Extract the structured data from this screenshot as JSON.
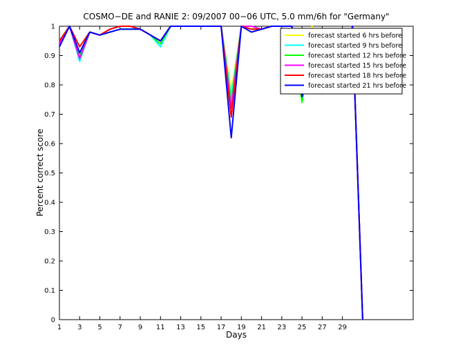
{
  "chart_data": {
    "type": "line",
    "title": "COSMO−DE and RANIE 2: 09/2007 00−06 UTC, 5.0 mm/6h for \"Germany\"",
    "xlabel": "Days",
    "ylabel": "Percent correct score",
    "xlim": [
      1,
      36
    ],
    "ylim": [
      0,
      1
    ],
    "x_ticks": [
      1,
      3,
      5,
      7,
      9,
      11,
      13,
      15,
      17,
      19,
      21,
      23,
      25,
      27,
      29
    ],
    "y_ticks": [
      0,
      0.1,
      0.2,
      0.3,
      0.4,
      0.5,
      0.6,
      0.7,
      0.8,
      0.9,
      1
    ],
    "x_tick_labels": [
      "1",
      "3",
      "5",
      "7",
      "9",
      "11",
      "13",
      "15",
      "17",
      "19",
      "21",
      "23",
      "25",
      "27",
      "29"
    ],
    "y_tick_labels": [
      "0",
      "0.1",
      "0.2",
      "0.3",
      "0.4",
      "0.5",
      "0.6",
      "0.7",
      "0.8",
      "0.9",
      "1"
    ],
    "grid": false,
    "legend_position": "top-right",
    "x": [
      1,
      2,
      3,
      4,
      5,
      6,
      7,
      8,
      9,
      10,
      11,
      12,
      13,
      14,
      15,
      16,
      17,
      18,
      19,
      20,
      21,
      22,
      23,
      24,
      25,
      26,
      27,
      28,
      29,
      30,
      31
    ],
    "series": [
      {
        "name": "forecast started 6 hrs before",
        "color": "#ffff00",
        "values": [
          0.95,
          1.0,
          0.93,
          0.98,
          0.97,
          0.98,
          0.99,
          0.99,
          0.99,
          0.97,
          0.95,
          1.0,
          1.0,
          1.0,
          1.0,
          1.0,
          1.0,
          0.78,
          1.0,
          0.99,
          0.99,
          1.0,
          1.0,
          1.0,
          0.79,
          1.0,
          0.81,
          0.87,
          0.83,
          1.0,
          0.0
        ]
      },
      {
        "name": "forecast started 9 hrs before",
        "color": "#00ffff",
        "values": [
          0.95,
          1.0,
          0.88,
          0.98,
          0.97,
          0.98,
          0.99,
          0.99,
          0.99,
          0.97,
          0.93,
          1.0,
          1.0,
          1.0,
          1.0,
          1.0,
          1.0,
          0.76,
          1.0,
          0.99,
          0.99,
          1.0,
          1.0,
          1.0,
          0.76,
          0.95,
          0.8,
          0.85,
          0.83,
          1.0,
          0.0
        ]
      },
      {
        "name": "forecast started 12 hrs before",
        "color": "#00ff00",
        "values": [
          0.95,
          1.0,
          0.9,
          0.98,
          0.97,
          0.98,
          0.99,
          0.99,
          0.99,
          0.97,
          0.94,
          1.0,
          1.0,
          1.0,
          1.0,
          1.0,
          1.0,
          0.74,
          1.0,
          0.99,
          0.99,
          1.0,
          1.0,
          1.0,
          0.74,
          0.94,
          0.82,
          0.86,
          0.82,
          1.0,
          0.0
        ]
      },
      {
        "name": "forecast started 15 hrs before",
        "color": "#ff00ff",
        "values": [
          0.94,
          1.0,
          0.89,
          0.98,
          0.97,
          0.99,
          1.0,
          1.0,
          0.99,
          0.97,
          0.95,
          1.0,
          1.0,
          1.0,
          1.0,
          1.0,
          1.0,
          0.72,
          1.0,
          1.0,
          0.99,
          1.0,
          1.0,
          1.0,
          0.77,
          0.96,
          0.82,
          0.89,
          0.86,
          1.0,
          0.0
        ]
      },
      {
        "name": "forecast started 18 hrs before",
        "color": "#ff0000",
        "values": [
          0.95,
          1.0,
          0.93,
          0.98,
          0.97,
          0.99,
          1.0,
          1.0,
          0.99,
          0.97,
          0.95,
          1.0,
          1.0,
          1.0,
          1.0,
          1.0,
          1.0,
          0.69,
          1.0,
          0.99,
          0.99,
          1.0,
          1.0,
          1.0,
          0.8,
          0.97,
          0.79,
          0.89,
          0.85,
          1.0,
          0.0
        ]
      },
      {
        "name": "forecast started 21 hrs before",
        "color": "#0000ff",
        "values": [
          0.93,
          1.0,
          0.91,
          0.98,
          0.97,
          0.98,
          0.99,
          0.99,
          0.99,
          0.97,
          0.95,
          1.0,
          1.0,
          1.0,
          1.0,
          1.0,
          1.0,
          0.62,
          1.0,
          0.98,
          0.99,
          1.0,
          1.0,
          1.0,
          0.76,
          0.93,
          0.77,
          0.86,
          0.8,
          1.0,
          0.0
        ]
      }
    ]
  }
}
